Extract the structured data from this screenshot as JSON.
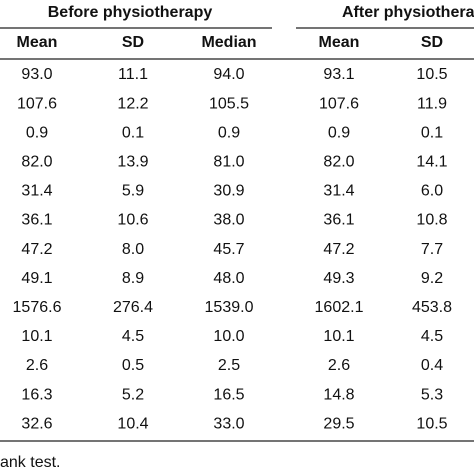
{
  "table": {
    "groups": [
      "Before physiotherapy",
      "After physiotherapy"
    ],
    "columns": [
      "Mean",
      "SD",
      "Median",
      "Mean",
      "SD"
    ],
    "rows": [
      [
        "93.0",
        "11.1",
        "94.0",
        "93.1",
        "10.5"
      ],
      [
        "107.6",
        "12.2",
        "105.5",
        "107.6",
        "11.9"
      ],
      [
        "0.9",
        "0.1",
        "0.9",
        "0.9",
        "0.1"
      ],
      [
        "82.0",
        "13.9",
        "81.0",
        "82.0",
        "14.1"
      ],
      [
        "31.4",
        "5.9",
        "30.9",
        "31.4",
        "6.0"
      ],
      [
        "36.1",
        "10.6",
        "38.0",
        "36.1",
        "10.8"
      ],
      [
        "47.2",
        "8.0",
        "45.7",
        "47.2",
        "7.7"
      ],
      [
        "49.1",
        "8.9",
        "48.0",
        "49.3",
        "9.2"
      ],
      [
        "1576.6",
        "276.4",
        "1539.0",
        "1602.1",
        "453.8"
      ],
      [
        "10.1",
        "4.5",
        "10.0",
        "10.1",
        "4.5"
      ],
      [
        "2.6",
        "0.5",
        "2.5",
        "2.6",
        "0.4"
      ],
      [
        "16.3",
        "5.2",
        "16.5",
        "14.8",
        "5.3"
      ],
      [
        "32.6",
        "10.4",
        "33.0",
        "29.5",
        "10.5"
      ]
    ],
    "footnote": "ank test."
  }
}
